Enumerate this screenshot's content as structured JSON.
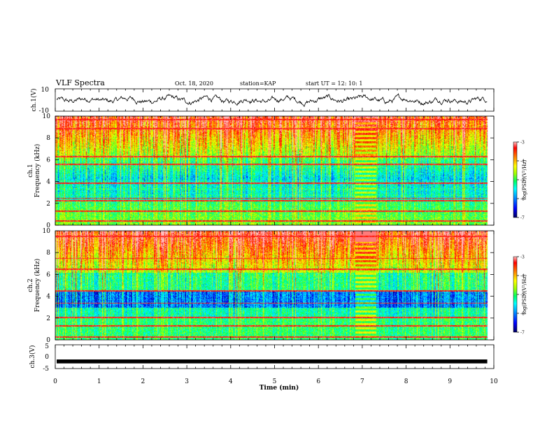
{
  "header": {
    "title": "VLF Spectra",
    "date": "Oct. 18, 2020",
    "station": "station=KAP",
    "start": "start  UT =   12: 10: 1"
  },
  "colors": {
    "spectrogram_gradient": [
      "#000060",
      "#0000ff",
      "#00a0ff",
      "#00ffff",
      "#00ff60",
      "#a0ff00",
      "#ffff00",
      "#ff8000",
      "#ff0000",
      "#ffc0c0"
    ],
    "trace": "#000000"
  },
  "chart_data": [
    {
      "type": "line",
      "ylabel": "ch.1(V)",
      "ylim": [
        -10,
        10
      ],
      "yticks": [
        "10",
        "-10"
      ],
      "xlim": [
        0,
        9.85
      ],
      "shape": "noisy trace oscillating roughly between -6 and +6 V"
    },
    {
      "type": "heatmap",
      "ylabel_1": "ch.1",
      "ylabel_2": "Frequency  (kHz)",
      "ylim": [
        0,
        10
      ],
      "yticks": [
        "0",
        "2",
        "4",
        "6",
        "8",
        "10"
      ],
      "xlim": [
        0,
        9.85
      ],
      "interference_band_min": [
        6.85,
        7.3
      ],
      "colorbar": {
        "label": "log(PSD)(V²/Hz)",
        "range": [
          -7,
          -3
        ],
        "ticks": [
          "-3",
          "-4",
          "-5",
          "-6",
          "-7"
        ]
      }
    },
    {
      "type": "heatmap",
      "ylabel_1": "ch.2",
      "ylabel_2": "Frequency  (kHz)",
      "ylim": [
        0,
        10
      ],
      "yticks": [
        "0",
        "2",
        "4",
        "6",
        "8",
        "10"
      ],
      "xlim": [
        0,
        9.85
      ],
      "interference_band_min": [
        6.85,
        7.3
      ],
      "colorbar": {
        "label": "log(PSD)(V²/Hz)",
        "range": [
          -7,
          -3
        ],
        "ticks": [
          "-3",
          "-4",
          "-5",
          "-6",
          "-7"
        ]
      }
    },
    {
      "type": "line",
      "ylabel": "ch.3(V)",
      "ylim": [
        -5,
        5
      ],
      "yticks": [
        "5",
        "0",
        "-5"
      ],
      "xlim": [
        0,
        9.85
      ],
      "value": -2,
      "shape": "thick near-constant trace at about -2 V"
    }
  ],
  "xaxis": {
    "label": "Time  (min)",
    "range": [
      0,
      10
    ],
    "ticks": [
      "0",
      "1",
      "2",
      "3",
      "4",
      "5",
      "6",
      "7",
      "8",
      "9",
      "10"
    ]
  }
}
